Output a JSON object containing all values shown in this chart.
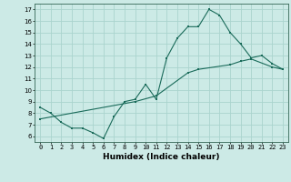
{
  "xlabel": "Humidex (Indice chaleur)",
  "ylabel": "",
  "background_color": "#cceae6",
  "line_color": "#1a6b5a",
  "xlim": [
    -0.5,
    23.5
  ],
  "ylim": [
    5.5,
    17.5
  ],
  "xticks": [
    0,
    1,
    2,
    3,
    4,
    5,
    6,
    7,
    8,
    9,
    10,
    11,
    12,
    13,
    14,
    15,
    16,
    17,
    18,
    19,
    20,
    21,
    22,
    23
  ],
  "yticks": [
    6,
    7,
    8,
    9,
    10,
    11,
    12,
    13,
    14,
    15,
    16,
    17
  ],
  "line1_x": [
    0,
    1,
    2,
    3,
    4,
    5,
    6,
    7,
    8,
    9,
    10,
    11,
    12,
    13,
    14,
    15,
    16,
    17,
    18,
    19,
    20,
    21,
    22,
    23
  ],
  "line1_y": [
    8.5,
    8.0,
    7.2,
    6.7,
    6.7,
    6.3,
    5.8,
    7.7,
    9.0,
    9.2,
    10.5,
    9.2,
    12.8,
    14.5,
    15.5,
    15.5,
    17.0,
    16.5,
    15.0,
    14.0,
    12.8,
    13.0,
    12.3,
    11.8
  ],
  "line2_x": [
    0,
    9,
    11,
    14,
    15,
    18,
    19,
    20,
    22,
    23
  ],
  "line2_y": [
    7.5,
    9.0,
    9.5,
    11.5,
    11.8,
    12.2,
    12.5,
    12.7,
    12.0,
    11.8
  ],
  "grid_color": "#aad4ce",
  "tick_fontsize": 5.0,
  "xlabel_fontsize": 6.5
}
